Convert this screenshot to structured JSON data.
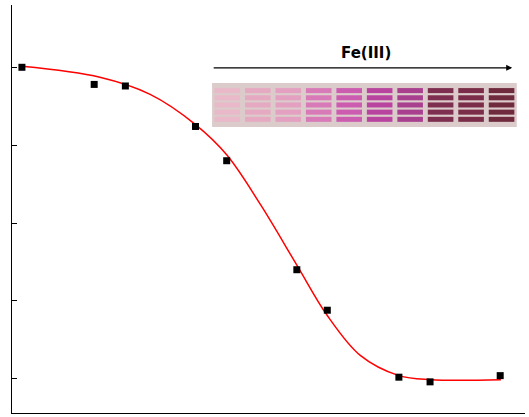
{
  "chart_data": {
    "type": "scatter",
    "series": [
      {
        "type": "line",
        "color": "#ff0000",
        "line_style": "solid",
        "x": [
          0,
          1.1,
          1.81,
          2.45,
          2.89,
          3.37,
          3.88,
          4.31,
          4.78,
          5.32,
          5.77,
          6.76
        ],
        "values": [
          1.003,
          0.968,
          0.913,
          0.816,
          0.719,
          0.558,
          0.365,
          0.203,
          0.074,
          0.01,
          -0.003,
          -0.003
        ]
      },
      {
        "type": "scatter",
        "color": "#000000",
        "marker": "square",
        "x": [
          0,
          1.02,
          1.46,
          2.45,
          2.89,
          3.88,
          4.31,
          5.32,
          5.76,
          6.75
        ],
        "values": [
          1.0,
          0.945,
          0.94,
          0.81,
          0.7,
          0.35,
          0.22,
          0.005,
          -0.01,
          0.01
        ]
      }
    ],
    "xlim": [
      -0.14,
      7.1
    ],
    "ylim": [
      -0.11,
      1.2
    ],
    "yticks": [
      0,
      0.25,
      0.5,
      0.75,
      1
    ],
    "tick_labels": false,
    "grid": false,
    "inset": {
      "label": "Fe(III)",
      "colors": [
        "#e9b9c9",
        "#e6a9c2",
        "#e3a0c0",
        "#d97ab8",
        "#cc5cb0",
        "#b8449f",
        "#a83f8f",
        "#7e2f50",
        "#7a2c48",
        "#6f2a3e"
      ]
    }
  }
}
